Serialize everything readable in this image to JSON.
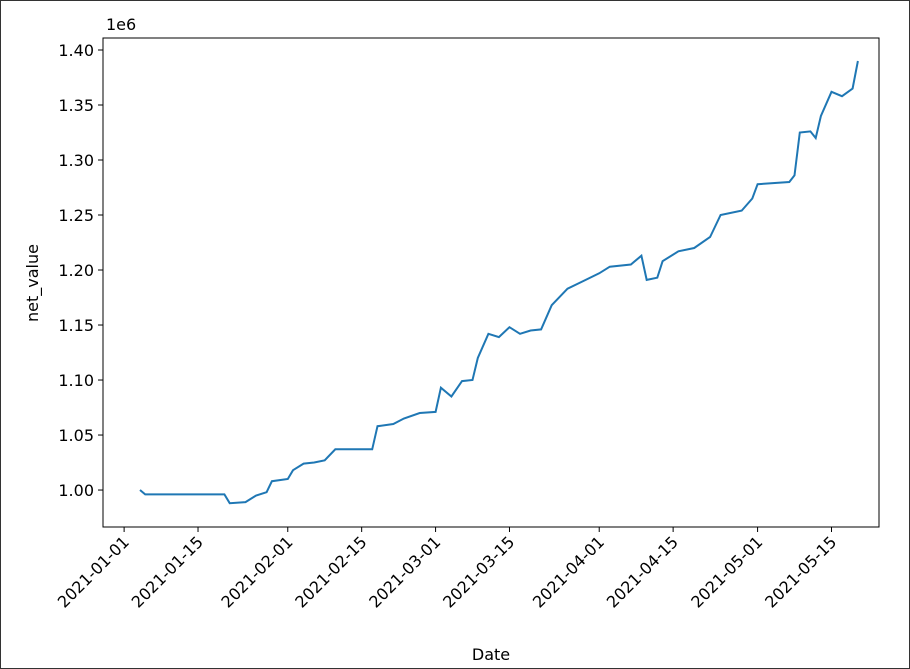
{
  "chart_data": {
    "type": "line",
    "xlabel": "Date",
    "ylabel": "net_value",
    "y_offset_label": "1e6",
    "x": [
      "2021-01-04",
      "2021-01-05",
      "2021-01-20",
      "2021-01-21",
      "2021-01-24",
      "2021-01-26",
      "2021-01-28",
      "2021-01-29",
      "2021-02-01",
      "2021-02-02",
      "2021-02-04",
      "2021-02-06",
      "2021-02-08",
      "2021-02-10",
      "2021-02-17",
      "2021-02-18",
      "2021-02-21",
      "2021-02-23",
      "2021-02-26",
      "2021-03-01",
      "2021-03-02",
      "2021-03-04",
      "2021-03-06",
      "2021-03-08",
      "2021-03-09",
      "2021-03-11",
      "2021-03-13",
      "2021-03-15",
      "2021-03-17",
      "2021-03-19",
      "2021-03-21",
      "2021-03-23",
      "2021-03-26",
      "2021-03-29",
      "2021-04-01",
      "2021-04-03",
      "2021-04-07",
      "2021-04-09",
      "2021-04-10",
      "2021-04-12",
      "2021-04-13",
      "2021-04-16",
      "2021-04-19",
      "2021-04-22",
      "2021-04-24",
      "2021-04-28",
      "2021-04-30",
      "2021-05-01",
      "2021-05-07",
      "2021-05-08",
      "2021-05-09",
      "2021-05-11",
      "2021-05-12",
      "2021-05-13",
      "2021-05-15",
      "2021-05-17",
      "2021-05-19",
      "2021-05-20"
    ],
    "series": [
      {
        "name": "net_value",
        "color": "#1f77b4",
        "values": [
          1000000,
          996000,
          996000,
          988000,
          989000,
          995000,
          998000,
          1008000,
          1010000,
          1018000,
          1024000,
          1025000,
          1027000,
          1037000,
          1037000,
          1058000,
          1060000,
          1065000,
          1070000,
          1071000,
          1093000,
          1085000,
          1099000,
          1100000,
          1120000,
          1142000,
          1139000,
          1148000,
          1142000,
          1145000,
          1146000,
          1168000,
          1183000,
          1190000,
          1197000,
          1203000,
          1205000,
          1213000,
          1191000,
          1193000,
          1208000,
          1217000,
          1220000,
          1230000,
          1250000,
          1254000,
          1265000,
          1278000,
          1280000,
          1286000,
          1325000,
          1326000,
          1320000,
          1340000,
          1362000,
          1358000,
          1365000,
          1390000
        ]
      }
    ],
    "xlim": [
      "2020-12-28",
      "2021-05-24"
    ],
    "xticks": [
      "2021-01-01",
      "2021-01-15",
      "2021-02-01",
      "2021-02-15",
      "2021-03-01",
      "2021-03-15",
      "2021-04-01",
      "2021-04-15",
      "2021-05-01",
      "2021-05-15"
    ],
    "ylim": [
      966400,
      1410900
    ],
    "yticks": [
      {
        "value": 1000000,
        "label": "1.00"
      },
      {
        "value": 1050000,
        "label": "1.05"
      },
      {
        "value": 1100000,
        "label": "1.10"
      },
      {
        "value": 1150000,
        "label": "1.15"
      },
      {
        "value": 1200000,
        "label": "1.20"
      },
      {
        "value": 1250000,
        "label": "1.25"
      },
      {
        "value": 1300000,
        "label": "1.30"
      },
      {
        "value": 1350000,
        "label": "1.35"
      },
      {
        "value": 1400000,
        "label": "1.40"
      }
    ],
    "grid": false
  }
}
